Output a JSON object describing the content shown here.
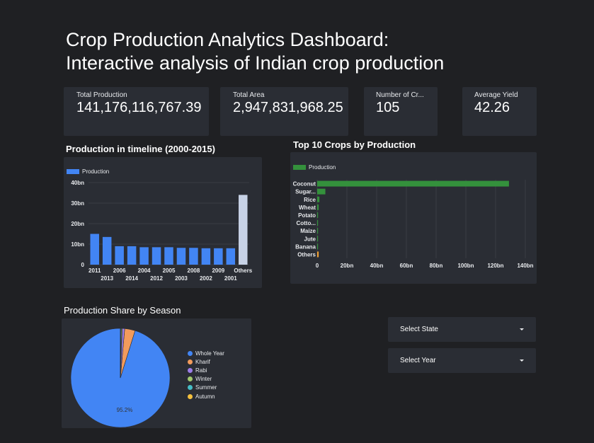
{
  "header": {
    "title_line1": "Crop Production Analytics Dashboard:",
    "title_line2": "Interactive analysis of Indian crop production"
  },
  "kpis": [
    {
      "label": "Total Production",
      "value": "141,176,116,767.39"
    },
    {
      "label": "Total Area",
      "value": "2,947,831,968.25"
    },
    {
      "label": "Number of Cr...",
      "value": "105"
    },
    {
      "label": "Average Yield",
      "value": "42.26"
    }
  ],
  "charts": {
    "timeline": {
      "title": "Production in timeline (2000-2015)"
    },
    "top_crops": {
      "title": "Top 10 Crops by Production"
    },
    "season": {
      "title": "Production Share by Season"
    }
  },
  "filters": {
    "state_label": "Select State",
    "year_label": "Select Year"
  },
  "colors": {
    "timeline_bar": "#4285f4",
    "timeline_others": "#c7d2e6",
    "crops_bar": "#34913c",
    "crops_others": "#f0a032"
  },
  "chart_data": [
    {
      "type": "bar",
      "title": "Production in timeline (2000-2015)",
      "categories": [
        "2011",
        "2013",
        "2006",
        "2014",
        "2004",
        "2012",
        "2005",
        "2003",
        "2008",
        "2002",
        "2009",
        "2001",
        "Others"
      ],
      "series": [
        {
          "name": "Production",
          "values": [
            15,
            13.5,
            9,
            9,
            8.5,
            8.5,
            8.5,
            8.2,
            8.2,
            8,
            8,
            8,
            34
          ]
        }
      ],
      "yticks": [
        "0",
        "10bn",
        "20bn",
        "30bn",
        "40bn"
      ],
      "ylim": [
        0,
        40
      ],
      "value_unit": "bn",
      "legend": "top-left"
    },
    {
      "type": "bar",
      "orientation": "horizontal",
      "title": "Top 10 Crops by Production",
      "categories": [
        "Coconut",
        "Sugar...",
        "Rice",
        "Wheat",
        "Potato",
        "Cotto...",
        "Maize",
        "Jute",
        "Banana",
        "Others"
      ],
      "series": [
        {
          "name": "Production",
          "values": [
            129,
            5.5,
            1.5,
            1.0,
            0.5,
            0.4,
            0.3,
            0.2,
            0.2,
            1.0
          ]
        }
      ],
      "xticks": [
        "0",
        "20bn",
        "40bn",
        "60bn",
        "80bn",
        "100bn",
        "120bn",
        "140bn"
      ],
      "xlim": [
        0,
        140
      ],
      "value_unit": "bn",
      "legend": "top-left"
    },
    {
      "type": "pie",
      "title": "Production Share by Season",
      "slices": [
        {
          "name": "Whole Year",
          "value": 95.2,
          "color": "#4285f4"
        },
        {
          "name": "Kharif",
          "value": 3.4,
          "color": "#f29b5c"
        },
        {
          "name": "Rabi",
          "value": 0.8,
          "color": "#9c7de8"
        },
        {
          "name": "Winter",
          "value": 0.3,
          "color": "#a3c96e"
        },
        {
          "name": "Summer",
          "value": 0.2,
          "color": "#46bdc6"
        },
        {
          "name": "Autumn",
          "value": 0.1,
          "color": "#f5c13e"
        }
      ],
      "slice_label": "95.2%",
      "legend": "right"
    }
  ]
}
